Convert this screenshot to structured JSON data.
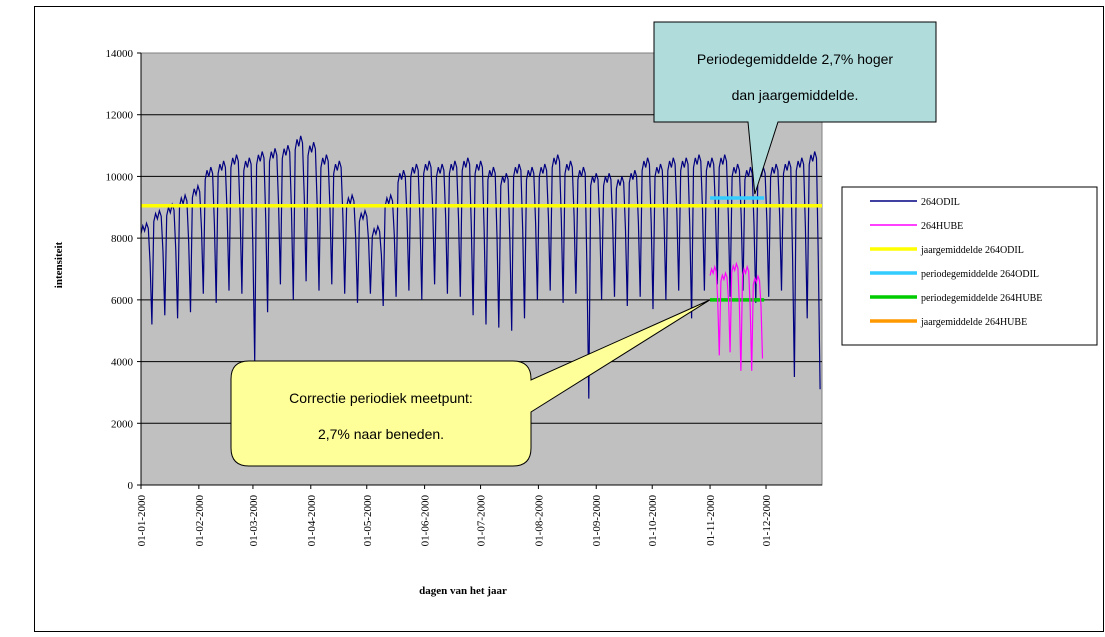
{
  "chart_data": {
    "type": "line",
    "xlabel": "dagen van het jaar",
    "ylabel": "intensiteit",
    "ylim": [
      0,
      14000
    ],
    "yticks": [
      0,
      2000,
      4000,
      6000,
      8000,
      10000,
      12000,
      14000
    ],
    "xtick_labels": [
      "01-01-2000",
      "01-02-2000",
      "01-03-2000",
      "01-04-2000",
      "01-05-2000",
      "01-06-2000",
      "01-07-2000",
      "01-08-2000",
      "01-09-2000",
      "01-10-2000",
      "01-11-2000",
      "01-12-2000"
    ],
    "x_range_days": [
      1,
      366
    ],
    "grid": "horizontal",
    "legend_position": "right",
    "series": [
      {
        "name": "264ODIL",
        "color": "#000080",
        "style": "daily weekly pattern",
        "x_start_day": 1,
        "x_end_day": 366,
        "weekday_level": [
          8400,
          8800,
          9000,
          9300,
          9600,
          10200,
          10400,
          10600,
          10500,
          10700,
          10800,
          10900,
          11200,
          11000,
          10600,
          10400,
          9300,
          8800,
          8300,
          9300,
          10100,
          10300,
          10400,
          10300,
          10400,
          10500,
          10400,
          10200,
          10000,
          10300,
          10200,
          10300,
          10600,
          10400,
          10200,
          10000,
          10000,
          9900,
          10100,
          10500,
          10300,
          10500,
          10500,
          10600,
          10500,
          10600,
          10300,
          10200,
          10200,
          10300,
          10400,
          10500,
          10700
        ],
        "weekend_dips": [
          5200,
          5500,
          5400,
          5600,
          6200,
          5900,
          6300,
          6200,
          4000,
          5600,
          6500,
          6000,
          6600,
          6300,
          6500,
          6200,
          5900,
          6200,
          5800,
          6100,
          6300,
          6000,
          6500,
          6200,
          6100,
          5500,
          5200,
          5100,
          5000,
          5400,
          6000,
          6300,
          5900,
          6200,
          2800,
          6000,
          6100,
          5800,
          6100,
          5700,
          6000,
          6300,
          5400,
          6300,
          6500,
          6100,
          6300,
          5900,
          6100,
          6300,
          3500,
          5400,
          3100
        ]
      },
      {
        "name": "264HUBE",
        "color": "#ff00ff",
        "x_start_day": 306,
        "x_end_day": 335,
        "weekday_level": [
          7000,
          6800,
          7100,
          7000,
          6700
        ],
        "weekend_dips": [
          4200,
          4300,
          3700,
          3700,
          4100
        ]
      },
      {
        "name": "jaargemiddelde 264ODIL",
        "color": "#ffff00",
        "value": 9050,
        "x_start_day": 1,
        "x_end_day": 366
      },
      {
        "name": "periodegemiddelde 264ODIL",
        "color": "#33ccff",
        "value": 9300,
        "x_start_day": 306,
        "x_end_day": 335
      },
      {
        "name": "periodegemiddelde 264HUBE",
        "color": "#00cc00",
        "value": 6000,
        "x_start_day": 306,
        "x_end_day": 335
      },
      {
        "name": "jaargemiddelde 264HUBE",
        "color": "#ff9900"
      }
    ],
    "annotations": [
      {
        "lines": [
          "Periodegemiddelde 2,7% hoger",
          "dan jaargemiddelde."
        ],
        "fill": "#b0dcdc",
        "points_to_day": 330,
        "points_to_value": 9300
      },
      {
        "lines": [
          "Correctie periodiek meetpunt:",
          "2,7% naar beneden."
        ],
        "fill": "#ffff99",
        "points_to_day": 306,
        "points_to_value": 6000
      }
    ]
  }
}
